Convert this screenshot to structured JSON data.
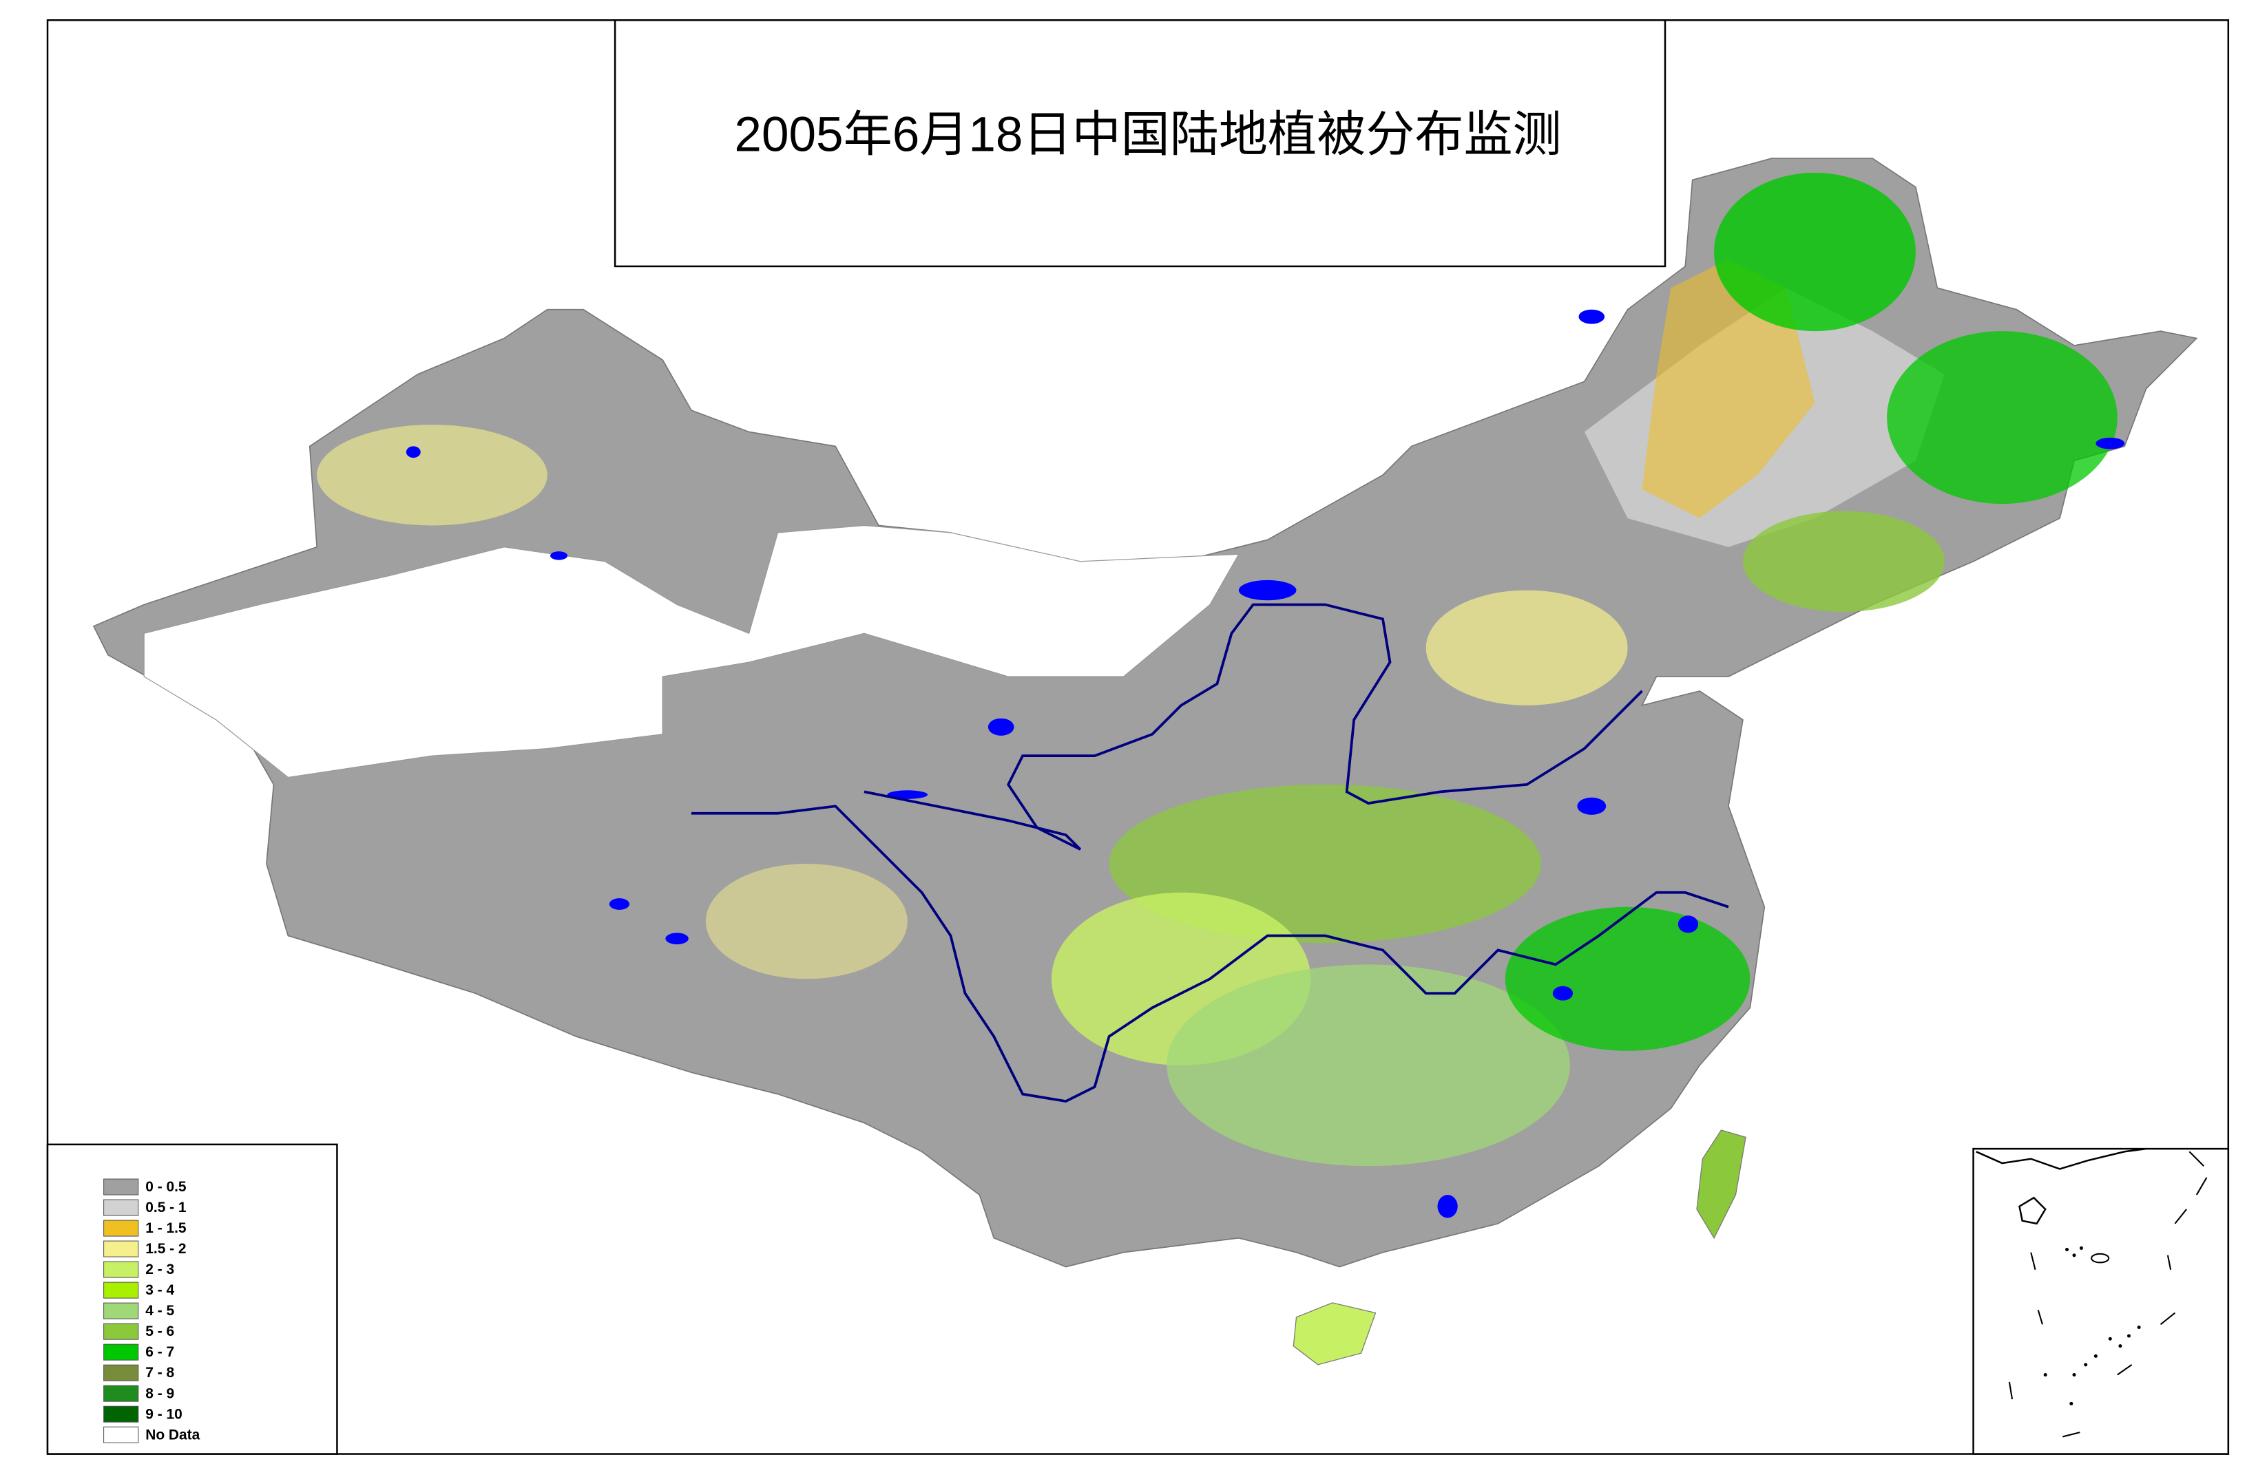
{
  "title": "2005年6月18日中国陆地植被分布监测",
  "legend": {
    "items": [
      {
        "label": "0 - 0.5",
        "color": "#a0a0a0"
      },
      {
        "label": "0.5 - 1",
        "color": "#d2d2d2"
      },
      {
        "label": "1 - 1.5",
        "color": "#f0c020"
      },
      {
        "label": "1.5 - 2",
        "color": "#f5f08c"
      },
      {
        "label": "2 - 3",
        "color": "#c8f064"
      },
      {
        "label": "3 - 4",
        "color": "#a8f000"
      },
      {
        "label": "4 - 5",
        "color": "#a0d878"
      },
      {
        "label": "5 - 6",
        "color": "#8cc83c"
      },
      {
        "label": "6 - 7",
        "color": "#00c800"
      },
      {
        "label": "7 - 8",
        "color": "#788c3c"
      },
      {
        "label": "8 - 9",
        "color": "#1e8c1e"
      },
      {
        "label": "9 - 10",
        "color": "#006400"
      },
      {
        "label": "No Data",
        "color": "#ffffff"
      }
    ]
  }
}
